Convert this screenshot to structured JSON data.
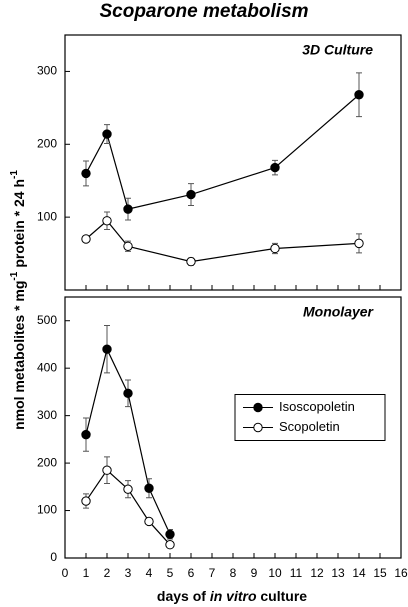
{
  "title": "Scoparone metabolism",
  "ylabel": [
    "nmol metabolites * mg",
    "-1",
    "protein * 24 h",
    "-1"
  ],
  "xlabel": [
    "days of ",
    "in vitro",
    " culture"
  ],
  "chart_data": [
    {
      "type": "line",
      "label": "3D Culture",
      "x": [
        1,
        2,
        3,
        6,
        10,
        14
      ],
      "xlim": [
        0,
        16
      ],
      "xticks": [
        0,
        1,
        2,
        3,
        4,
        5,
        6,
        7,
        8,
        9,
        10,
        11,
        12,
        13,
        14,
        15,
        16
      ],
      "ylim": [
        0,
        350
      ],
      "yticks": [
        100,
        200,
        300
      ],
      "series": [
        {
          "color": "#000000",
          "marker_fill": "#000000",
          "values": [
            160,
            214,
            111,
            131,
            168,
            268
          ],
          "errors": [
            17,
            13,
            15,
            15,
            10,
            30
          ]
        },
        {
          "color": "#000000",
          "marker_fill": "#ffffff",
          "values": [
            70,
            95,
            60,
            39,
            57,
            64
          ],
          "errors": [
            3,
            12,
            7,
            5,
            7,
            13
          ]
        }
      ]
    },
    {
      "type": "line",
      "label": "Monolayer",
      "x": [
        1,
        2,
        3,
        4,
        5
      ],
      "xlim": [
        0,
        16
      ],
      "xticks": [
        0,
        1,
        2,
        3,
        4,
        5,
        6,
        7,
        8,
        9,
        10,
        11,
        12,
        13,
        14,
        15,
        16
      ],
      "ylim": [
        0,
        550
      ],
      "yticks": [
        0,
        100,
        200,
        300,
        400,
        500
      ],
      "legend": "right",
      "series": [
        {
          "name": "Isoscopoletin",
          "color": "#000000",
          "marker_fill": "#000000",
          "values": [
            260,
            440,
            347,
            147,
            50
          ],
          "errors": [
            35,
            50,
            28,
            20,
            10
          ]
        },
        {
          "name": "Scopoletin",
          "color": "#000000",
          "marker_fill": "#ffffff",
          "values": [
            120,
            185,
            145,
            77,
            28
          ],
          "errors": [
            15,
            28,
            18,
            5,
            5
          ]
        }
      ]
    }
  ]
}
